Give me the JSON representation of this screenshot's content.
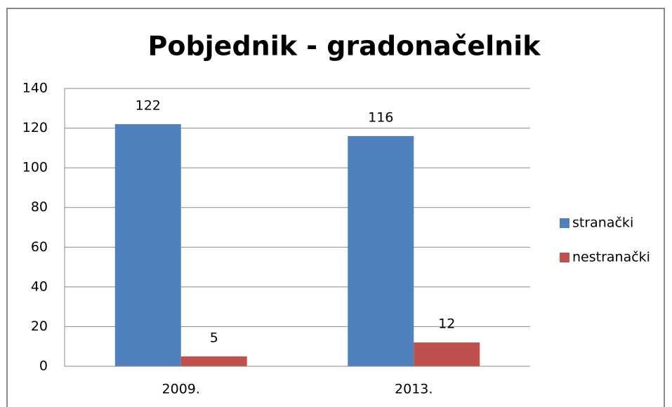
{
  "chart_data": {
    "type": "bar",
    "title": "Pobjednik - gradonačelnik",
    "categories": [
      "2009.",
      "2013."
    ],
    "series": [
      {
        "name": "stranački",
        "color": "#4f81bd",
        "values": [
          122,
          116
        ]
      },
      {
        "name": "nestranački",
        "color": "#c0504d",
        "values": [
          5,
          12
        ]
      }
    ],
    "ylim": [
      0,
      140
    ],
    "yticks": [
      0,
      20,
      40,
      60,
      80,
      100,
      120,
      140
    ],
    "grid": true,
    "legend": "right"
  }
}
